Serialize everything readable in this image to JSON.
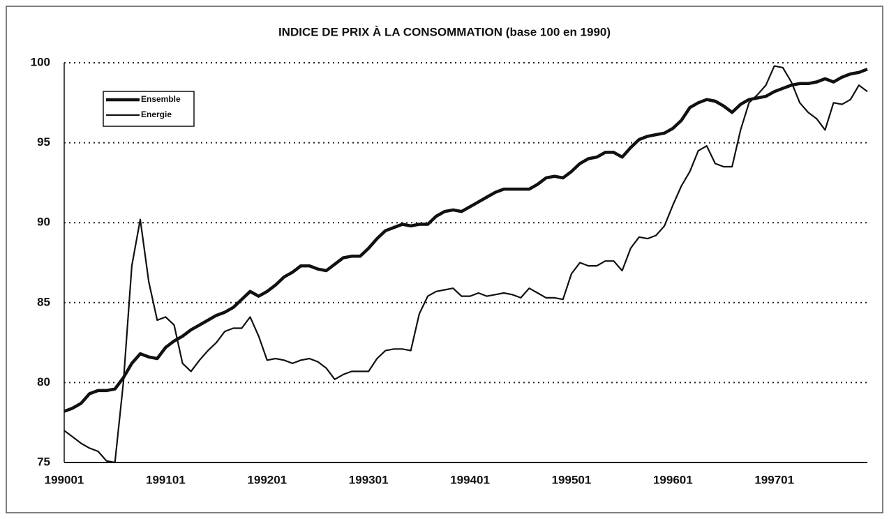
{
  "chart_data": {
    "type": "line",
    "title": "INDICE DE PRIX À LA CONSOMMATION (base 100 en 1990)",
    "categories": [
      "199001",
      null,
      null,
      null,
      null,
      null,
      null,
      null,
      null,
      null,
      null,
      null,
      "199101",
      null,
      null,
      null,
      null,
      null,
      null,
      null,
      null,
      null,
      null,
      null,
      "199201",
      null,
      null,
      null,
      null,
      null,
      null,
      null,
      null,
      null,
      null,
      null,
      "199301",
      null,
      null,
      null,
      null,
      null,
      null,
      null,
      null,
      null,
      null,
      null,
      "199401",
      null,
      null,
      null,
      null,
      null,
      null,
      null,
      null,
      null,
      null,
      null,
      "199501",
      null,
      null,
      null,
      null,
      null,
      null,
      null,
      null,
      null,
      null,
      null,
      "199601",
      null,
      null,
      null,
      null,
      null,
      null,
      null,
      null,
      null,
      null,
      null,
      "199701",
      null,
      null,
      null,
      null,
      null,
      null,
      null,
      null,
      null,
      null,
      null
    ],
    "series": [
      {
        "name": "Ensemble",
        "color": "#111111",
        "values": [
          78.2,
          78.4,
          78.7,
          79.3,
          79.5,
          79.5,
          79.6,
          80.3,
          81.2,
          81.8,
          81.6,
          81.5,
          82.2,
          82.6,
          82.9,
          83.3,
          83.6,
          83.9,
          84.2,
          84.4,
          84.7,
          85.2,
          85.7,
          85.4,
          85.7,
          86.1,
          86.6,
          86.9,
          87.3,
          87.3,
          87.1,
          87.0,
          87.4,
          87.8,
          87.9,
          87.9,
          88.4,
          89.0,
          89.5,
          89.7,
          89.9,
          89.8,
          89.9,
          89.9,
          90.4,
          90.7,
          90.8,
          90.7,
          91.0,
          91.3,
          91.6,
          91.9,
          92.1,
          92.1,
          92.1,
          92.1,
          92.4,
          92.8,
          92.9,
          92.8,
          93.2,
          93.7,
          94.0,
          94.1,
          94.4,
          94.4,
          94.1,
          94.7,
          95.2,
          95.4,
          95.5,
          95.6,
          95.9,
          96.4,
          97.2,
          97.5,
          97.7,
          97.6,
          97.3,
          96.9,
          97.4,
          97.7,
          97.8,
          97.9,
          98.2,
          98.4,
          98.6,
          98.7,
          98.7,
          98.8,
          99.0,
          98.8,
          99.1,
          99.3,
          99.4,
          99.6
        ]
      },
      {
        "name": "Energie",
        "color": "#111111",
        "values": [
          77.0,
          76.6,
          76.2,
          75.9,
          75.7,
          75.1,
          75.0,
          80.0,
          87.3,
          90.2,
          86.3,
          83.9,
          84.1,
          83.6,
          81.2,
          80.7,
          81.4,
          82.0,
          82.5,
          83.2,
          83.4,
          83.4,
          84.1,
          82.9,
          81.4,
          81.5,
          81.4,
          81.2,
          81.4,
          81.5,
          81.3,
          80.9,
          80.2,
          80.5,
          80.7,
          80.7,
          80.7,
          81.5,
          82.0,
          82.1,
          82.1,
          82.0,
          84.3,
          85.4,
          85.7,
          85.8,
          85.9,
          85.4,
          85.4,
          85.6,
          85.4,
          85.5,
          85.6,
          85.5,
          85.3,
          85.9,
          85.6,
          85.3,
          85.3,
          85.2,
          86.8,
          87.5,
          87.3,
          87.3,
          87.6,
          87.6,
          87.0,
          88.4,
          89.1,
          89.0,
          89.2,
          89.8,
          91.1,
          92.3,
          93.2,
          94.5,
          94.8,
          93.7,
          93.5,
          93.5,
          95.8,
          97.5,
          98.0,
          98.6,
          99.8,
          99.7,
          98.8,
          97.5,
          96.9,
          96.5,
          95.8,
          97.5,
          97.4,
          97.7,
          98.6,
          98.2
        ]
      }
    ],
    "ylim": [
      75,
      100
    ],
    "yticks": [
      75,
      80,
      85,
      90,
      95,
      100
    ],
    "grid": true
  }
}
